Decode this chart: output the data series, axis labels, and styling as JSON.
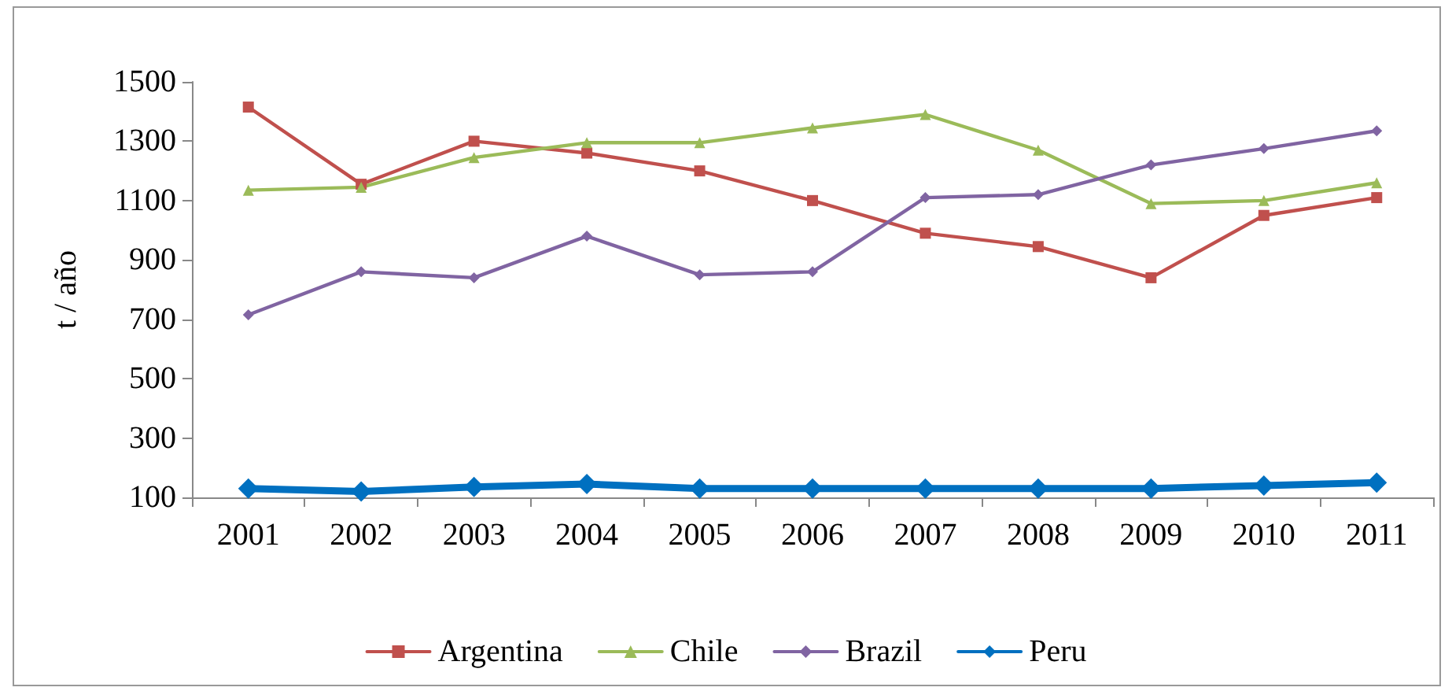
{
  "chart_data": {
    "type": "line",
    "ylabel": "t / año",
    "categories": [
      "2001",
      "2002",
      "2003",
      "2004",
      "2005",
      "2006",
      "2007",
      "2008",
      "2009",
      "2010",
      "2011"
    ],
    "series": [
      {
        "name": "Argentina",
        "color": "#c0504d",
        "marker": "square",
        "values": [
          1415,
          1155,
          1300,
          1260,
          1200,
          1100,
          990,
          945,
          840,
          1050,
          1110
        ]
      },
      {
        "name": "Chile",
        "color": "#9bbb59",
        "marker": "triangle",
        "values": [
          1135,
          1145,
          1245,
          1295,
          1295,
          1345,
          1390,
          1270,
          1090,
          1100,
          1160
        ]
      },
      {
        "name": "Brazil",
        "color": "#8064a2",
        "marker": "diamond",
        "values": [
          715,
          860,
          840,
          980,
          850,
          860,
          1110,
          1120,
          1220,
          1275,
          1335
        ]
      },
      {
        "name": "Peru",
        "color": "#0070c0",
        "marker": "diamond",
        "values": [
          130,
          120,
          135,
          145,
          130,
          130,
          130,
          130,
          130,
          140,
          150
        ]
      }
    ],
    "ylim": [
      100,
      1500
    ],
    "yticks": [
      100,
      300,
      500,
      700,
      900,
      1100,
      1300,
      1500
    ],
    "grid": false,
    "legend": "bottom",
    "line_style": "solid"
  }
}
